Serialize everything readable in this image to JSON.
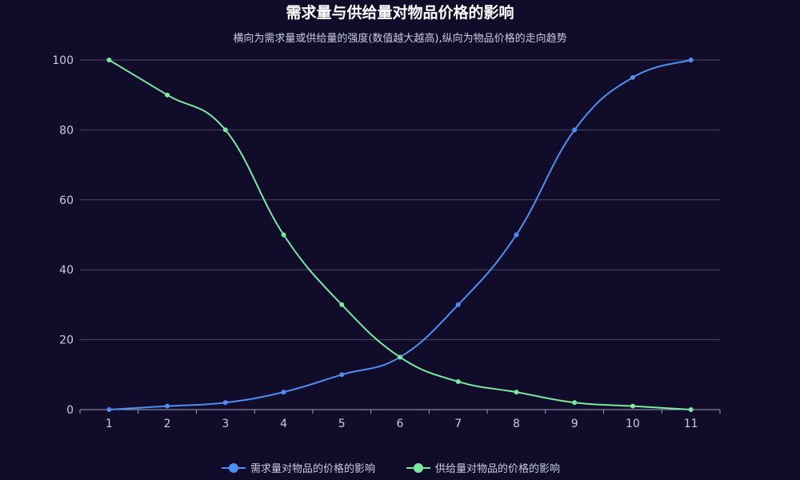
{
  "colors": {
    "background": "#100c2a",
    "series": [
      "#4f8ff0",
      "#7be8a0"
    ],
    "grid": "#4a4a66",
    "axis": "#9ea0b8",
    "text": "#c8cbe0",
    "title": "#ffffff"
  },
  "chart_data": {
    "type": "line",
    "title": "需求量与供给量对物品价格的影响",
    "subtitle": "横向为需求量或供给量的强度(数值越大越高),纵向为物品价格的走向趋势",
    "x": [
      "1",
      "2",
      "3",
      "4",
      "5",
      "6",
      "7",
      "8",
      "9",
      "10",
      "11"
    ],
    "ylim": [
      0,
      100
    ],
    "y_ticks": [
      0,
      20,
      40,
      60,
      80,
      100
    ],
    "smooth": true,
    "grid": "horizontal",
    "legend_position": "bottom-center",
    "series": [
      {
        "name": "需求量对物品的价格的影响",
        "values": [
          0,
          1,
          2,
          5,
          10,
          15,
          30,
          50,
          80,
          95,
          100
        ]
      },
      {
        "name": "供给量对物品的价格的影响",
        "values": [
          100,
          90,
          80,
          50,
          30,
          15,
          8,
          5,
          2,
          1,
          0
        ]
      }
    ]
  }
}
